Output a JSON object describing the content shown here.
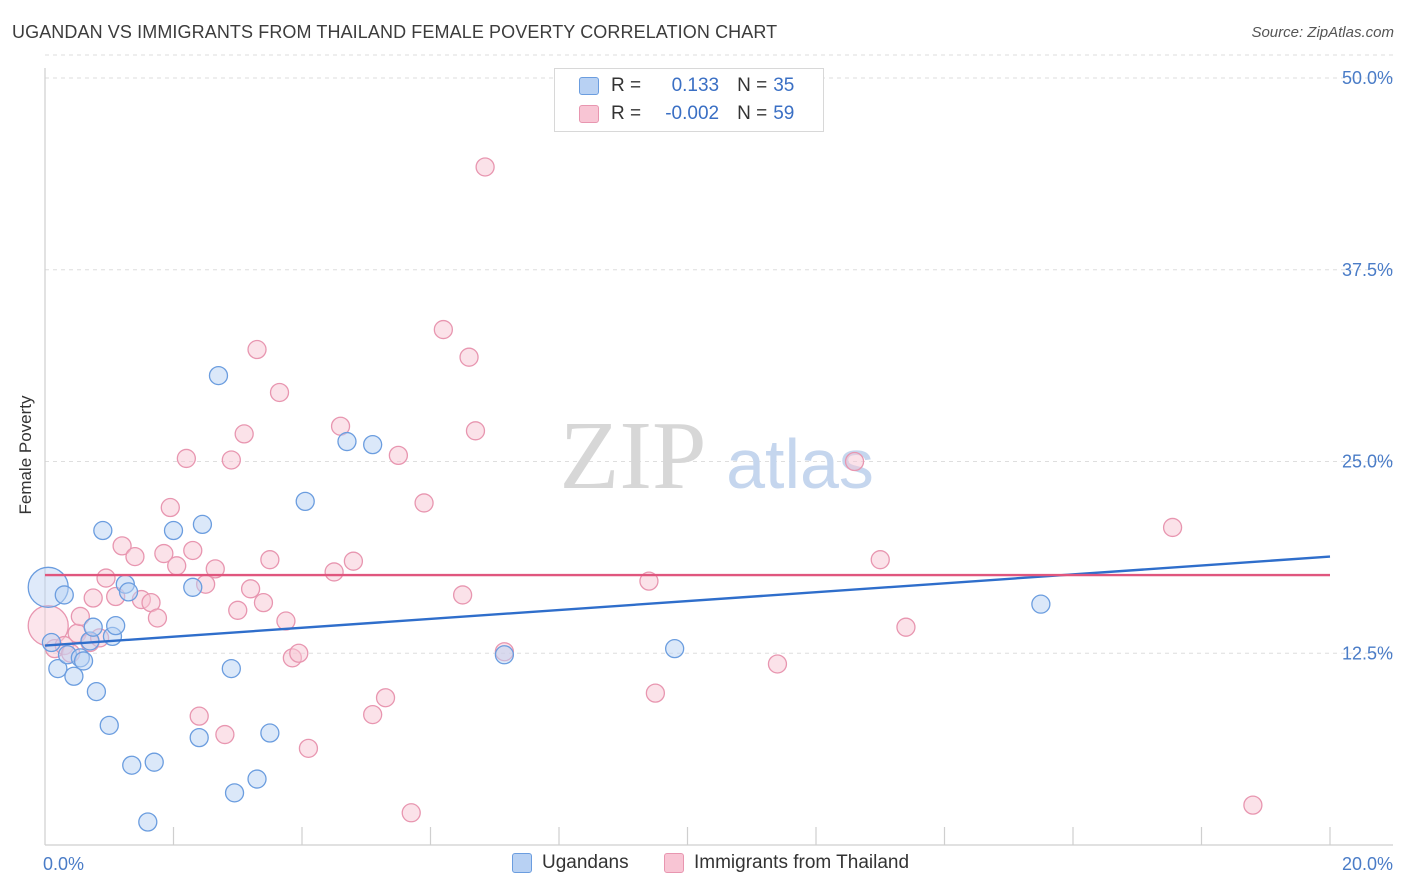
{
  "title": "UGANDAN VS IMMIGRANTS FROM THAILAND FEMALE POVERTY CORRELATION CHART",
  "source": "Source: ZipAtlas.com",
  "watermark": {
    "zip": "ZIP",
    "atlas": "atlas"
  },
  "legend": {
    "r_label": "R =",
    "n_label": "N =",
    "series1": {
      "r": "0.133",
      "n": "35"
    },
    "series2": {
      "r": "-0.002",
      "n": "59"
    }
  },
  "colors": {
    "blue_fill": "#b8d1f3",
    "blue_stroke": "#6b9ddf",
    "blue_line": "#2f6ecb",
    "pink_fill": "#f8c5d4",
    "pink_stroke": "#e896b0",
    "pink_line": "#e0567e"
  },
  "chart_data": {
    "type": "scatter",
    "title": "UGANDAN VS IMMIGRANTS FROM THAILAND FEMALE POVERTY CORRELATION CHART",
    "xlabel": "",
    "ylabel": "Female Poverty",
    "xlim": [
      0,
      20
    ],
    "ylim": [
      0,
      52
    ],
    "x_tick_labels": [
      "0.0%",
      "20.0%"
    ],
    "y_ticks": [
      12.5,
      25.0,
      37.5,
      50.0
    ],
    "y_tick_labels": [
      "12.5%",
      "25.0%",
      "37.5%",
      "50.0%"
    ],
    "grid": true,
    "series": [
      {
        "name": "Ugandans",
        "color": "#6b9ddf",
        "trend": {
          "x": [
            0,
            20
          ],
          "y": [
            13.0,
            18.8
          ]
        },
        "points": [
          {
            "x": 0.05,
            "y": 16.8,
            "big": true
          },
          {
            "x": 0.1,
            "y": 13.2
          },
          {
            "x": 0.2,
            "y": 11.5
          },
          {
            "x": 0.3,
            "y": 16.3
          },
          {
            "x": 0.35,
            "y": 12.4
          },
          {
            "x": 0.45,
            "y": 11.0
          },
          {
            "x": 0.55,
            "y": 12.2
          },
          {
            "x": 0.6,
            "y": 12.0
          },
          {
            "x": 0.7,
            "y": 13.3
          },
          {
            "x": 0.75,
            "y": 14.2
          },
          {
            "x": 0.8,
            "y": 10.0
          },
          {
            "x": 0.9,
            "y": 20.5
          },
          {
            "x": 1.0,
            "y": 7.8
          },
          {
            "x": 1.05,
            "y": 13.6
          },
          {
            "x": 1.1,
            "y": 14.3
          },
          {
            "x": 1.25,
            "y": 17.0
          },
          {
            "x": 1.3,
            "y": 16.5
          },
          {
            "x": 1.35,
            "y": 5.2
          },
          {
            "x": 1.6,
            "y": 1.5
          },
          {
            "x": 1.7,
            "y": 5.4
          },
          {
            "x": 2.0,
            "y": 20.5
          },
          {
            "x": 2.3,
            "y": 16.8
          },
          {
            "x": 2.4,
            "y": 7.0
          },
          {
            "x": 2.45,
            "y": 20.9
          },
          {
            "x": 2.7,
            "y": 30.6
          },
          {
            "x": 2.9,
            "y": 11.5
          },
          {
            "x": 2.95,
            "y": 3.4
          },
          {
            "x": 3.3,
            "y": 4.3
          },
          {
            "x": 3.5,
            "y": 7.3
          },
          {
            "x": 4.05,
            "y": 22.4
          },
          {
            "x": 4.7,
            "y": 26.3
          },
          {
            "x": 5.1,
            "y": 26.1
          },
          {
            "x": 7.15,
            "y": 12.4
          },
          {
            "x": 9.8,
            "y": 12.8
          },
          {
            "x": 15.5,
            "y": 15.7
          }
        ]
      },
      {
        "name": "Immigrants from Thailand",
        "color": "#e896b0",
        "trend": {
          "x": [
            0,
            20
          ],
          "y": [
            17.6,
            17.6
          ]
        },
        "points": [
          {
            "x": 0.05,
            "y": 14.3,
            "big": true
          },
          {
            "x": 0.15,
            "y": 12.8
          },
          {
            "x": 0.3,
            "y": 13.0
          },
          {
            "x": 0.4,
            "y": 12.5
          },
          {
            "x": 0.5,
            "y": 13.8
          },
          {
            "x": 0.55,
            "y": 14.9
          },
          {
            "x": 0.7,
            "y": 13.2
          },
          {
            "x": 0.75,
            "y": 16.1
          },
          {
            "x": 0.85,
            "y": 13.5
          },
          {
            "x": 0.95,
            "y": 17.4
          },
          {
            "x": 1.1,
            "y": 16.2
          },
          {
            "x": 1.2,
            "y": 19.5
          },
          {
            "x": 1.4,
            "y": 18.8
          },
          {
            "x": 1.5,
            "y": 16.0
          },
          {
            "x": 1.65,
            "y": 15.8
          },
          {
            "x": 1.75,
            "y": 14.8
          },
          {
            "x": 1.85,
            "y": 19.0
          },
          {
            "x": 1.95,
            "y": 22.0
          },
          {
            "x": 2.05,
            "y": 18.2
          },
          {
            "x": 2.2,
            "y": 25.2
          },
          {
            "x": 2.3,
            "y": 19.2
          },
          {
            "x": 2.4,
            "y": 8.4
          },
          {
            "x": 2.5,
            "y": 17.0
          },
          {
            "x": 2.65,
            "y": 18.0
          },
          {
            "x": 2.8,
            "y": 7.2
          },
          {
            "x": 2.9,
            "y": 25.1
          },
          {
            "x": 3.0,
            "y": 15.3
          },
          {
            "x": 3.1,
            "y": 26.8
          },
          {
            "x": 3.2,
            "y": 16.7
          },
          {
            "x": 3.3,
            "y": 32.3
          },
          {
            "x": 3.4,
            "y": 15.8
          },
          {
            "x": 3.5,
            "y": 18.6
          },
          {
            "x": 3.65,
            "y": 29.5
          },
          {
            "x": 3.75,
            "y": 14.6
          },
          {
            "x": 3.85,
            "y": 12.2
          },
          {
            "x": 3.95,
            "y": 12.5
          },
          {
            "x": 4.1,
            "y": 6.3
          },
          {
            "x": 4.5,
            "y": 17.8
          },
          {
            "x": 4.6,
            "y": 27.3
          },
          {
            "x": 4.8,
            "y": 18.5
          },
          {
            "x": 5.1,
            "y": 8.5
          },
          {
            "x": 5.3,
            "y": 9.6
          },
          {
            "x": 5.5,
            "y": 25.4
          },
          {
            "x": 5.7,
            "y": 2.1
          },
          {
            "x": 5.9,
            "y": 22.3
          },
          {
            "x": 6.2,
            "y": 33.6
          },
          {
            "x": 6.5,
            "y": 16.3
          },
          {
            "x": 6.6,
            "y": 31.8
          },
          {
            "x": 6.7,
            "y": 27.0
          },
          {
            "x": 6.85,
            "y": 44.2
          },
          {
            "x": 7.15,
            "y": 12.6
          },
          {
            "x": 9.4,
            "y": 17.2
          },
          {
            "x": 9.5,
            "y": 9.9
          },
          {
            "x": 11.4,
            "y": 11.8
          },
          {
            "x": 12.6,
            "y": 25.0
          },
          {
            "x": 13.0,
            "y": 18.6
          },
          {
            "x": 13.4,
            "y": 14.2
          },
          {
            "x": 17.55,
            "y": 20.7
          },
          {
            "x": 18.8,
            "y": 2.6
          }
        ]
      }
    ]
  }
}
